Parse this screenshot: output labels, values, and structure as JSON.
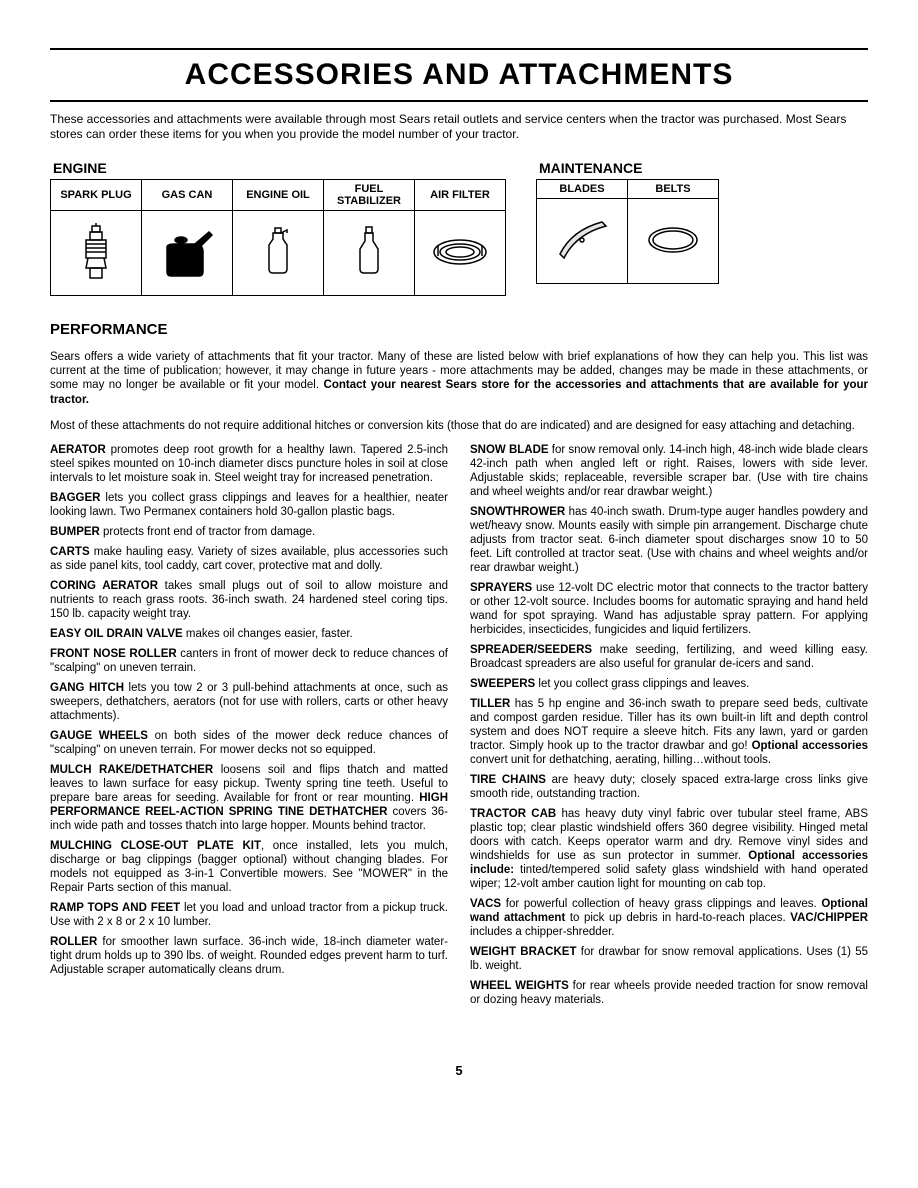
{
  "title": "ACCESSORIES AND ATTACHMENTS",
  "intro": "These accessories and attachments were available through most Sears retail outlets and service centers when the tractor was purchased. Most Sears stores can order these items for you when you provide the model number of your tractor.",
  "tables": {
    "engine": {
      "label": "ENGINE",
      "headers": [
        "SPARK PLUG",
        "GAS CAN",
        "ENGINE OIL",
        "FUEL STABILIZER",
        "AIR FILTER"
      ]
    },
    "maintenance": {
      "label": "MAINTENANCE",
      "headers": [
        "BLADES",
        "BELTS"
      ]
    }
  },
  "performance": {
    "heading": "PERFORMANCE",
    "intro1": "Sears offers a wide variety of attachments that fit your tractor. Many of these are listed below with brief explanations of how they can help you. This list was current at the time of publication; however, it may change in future years - more attachments may be added, changes may be made in these attachments, or some may no longer be available or fit your model. ",
    "intro1_bold": "Contact your nearest Sears store for the accessories and attachments that are available for your tractor.",
    "intro2": "Most of these attachments do not require additional hitches or conversion kits (those that do are indicated) and are designed for easy attaching and detaching."
  },
  "left_items": [
    {
      "name": "AERATOR",
      "text": " promotes deep root growth for a healthy lawn. Tapered 2.5-inch steel spikes mounted on 10-inch diameter discs puncture holes in soil at close intervals to let moisture soak in. Steel weight tray for increased penetration."
    },
    {
      "name": "BAGGER",
      "text": " lets you collect grass clippings and leaves for a healthier, neater looking lawn. Two Permanex containers hold 30-gallon plastic bags."
    },
    {
      "name": "BUMPER",
      "text": " protects front end of tractor from damage."
    },
    {
      "name": "CARTS",
      "text": " make hauling easy. Variety of sizes available, plus accessories such as side panel kits, tool caddy, cart cover, protective mat and dolly."
    },
    {
      "name": "CORING AERATOR",
      "text": " takes small plugs out of soil to allow moisture and nutrients to reach grass roots. 36-inch swath. 24 hardened steel coring tips. 150 lb. capacity weight tray."
    },
    {
      "name": "EASY OIL DRAIN VALVE",
      "text": " makes oil changes easier, faster."
    },
    {
      "name": "FRONT NOSE ROLLER",
      "text": " canters in front of mower deck to reduce chances of \"scalping\" on uneven terrain."
    },
    {
      "name": "GANG HITCH",
      "text": " lets you tow 2 or 3 pull-behind attachments at once, such as sweepers, dethatchers, aerators (not for use with rollers, carts or other heavy attachments)."
    },
    {
      "name": "GAUGE WHEELS",
      "text": " on both sides of the mower deck reduce chances of \"scalping\" on uneven terrain. For mower decks not so equipped."
    },
    {
      "name": "MULCH RAKE/DETHATCHER",
      "text": " loosens soil and flips thatch and matted leaves to lawn surface for easy pickup. Twenty spring tine teeth. Useful to prepare bare areas for seeding. Available for front or rear mounting. ",
      "name2": "HIGH PERFORMANCE REEL-ACTION SPRING TINE DETHATCHER",
      "text2": " covers 36-inch wide path and tosses thatch into large hopper. Mounts behind tractor."
    },
    {
      "name": "MULCHING CLOSE-OUT PLATE KIT",
      "text": ", once installed, lets you mulch, discharge or bag clippings (bagger optional) without changing blades. For models not equipped as 3-in-1 Convertible mowers. See \"MOWER\" in the Repair Parts section of this manual."
    },
    {
      "name": "RAMP TOPS AND FEET",
      "text": " let you load and unload tractor from a pickup truck. Use with 2 x 8 or 2 x 10 lumber."
    },
    {
      "name": "ROLLER",
      "text": " for smoother lawn surface. 36-inch wide, 18-inch diameter water-tight drum holds up to 390 lbs. of weight. Rounded edges prevent harm to turf. Adjustable scraper automatically cleans drum."
    }
  ],
  "right_items": [
    {
      "name": "SNOW BLADE",
      "text": " for snow removal only. 14-inch high, 48-inch wide blade clears 42-inch path when angled left or right. Raises, lowers with side lever. Adjustable skids; replaceable, reversible scraper bar. (Use with tire chains and wheel weights and/or rear drawbar weight.)"
    },
    {
      "name": "SNOWTHROWER",
      "text": " has 40-inch swath. Drum-type auger handles powdery and wet/heavy snow. Mounts easily with simple pin arrangement. Discharge chute adjusts from tractor seat. 6-inch diameter spout discharges snow 10 to 50 feet. Lift controlled at tractor seat. (Use with chains and wheel weights and/or rear drawbar weight.)"
    },
    {
      "name": "SPRAYERS",
      "text": " use 12-volt DC electric motor that connects to the tractor battery or other 12-volt source. Includes booms for automatic spraying and hand held wand for spot spraying. Wand has adjustable spray pattern. For applying herbicides, insecticides, fungicides and liquid fertilizers."
    },
    {
      "name": "SPREADER/SEEDERS",
      "text": " make seeding, fertilizing, and weed killing easy. Broadcast spreaders are also useful for granular de-icers and sand."
    },
    {
      "name": "SWEEPERS",
      "text": " let you collect grass clippings and leaves."
    },
    {
      "name": "TILLER",
      "text": " has 5 hp engine and 36-inch swath to prepare seed beds, cultivate and compost garden residue. Tiller has its own built-in lift and depth control system and does NOT require a sleeve hitch. Fits any lawn, yard or garden tractor. Simply hook up to the tractor drawbar and go! ",
      "name2": "Optional accessories",
      "text2": " convert unit for dethatching, aerating, hilling…without tools."
    },
    {
      "name": "TIRE CHAINS",
      "text": " are heavy duty; closely spaced extra-large cross links give smooth ride, outstanding traction."
    },
    {
      "name": "TRACTOR CAB",
      "text": " has heavy duty vinyl fabric over tubular steel frame, ABS plastic top; clear plastic windshield offers 360 degree visibility. Hinged metal doors with catch. Keeps operator warm and dry. Remove vinyl sides and windshields for use as sun protector in summer. ",
      "name2": "Optional accessories include:",
      "text2": " tinted/tempered solid safety glass windshield with hand operated wiper; 12-volt amber caution light for mounting on cab top."
    },
    {
      "name": "VACS",
      "text": " for powerful collection of heavy grass clippings and leaves. ",
      "name2": "Optional wand attachment",
      "text2": " to pick up debris in hard-to-reach places. ",
      "name3": "VAC/CHIPPER",
      "text3": " includes a chipper-shredder."
    },
    {
      "name": "WEIGHT BRACKET",
      "text": " for drawbar for snow removal applications. Uses (1) 55 lb. weight."
    },
    {
      "name": "WHEEL WEIGHTS",
      "text": " for rear wheels provide needed traction for snow removal or dozing heavy materials."
    }
  ],
  "page_number": "5"
}
